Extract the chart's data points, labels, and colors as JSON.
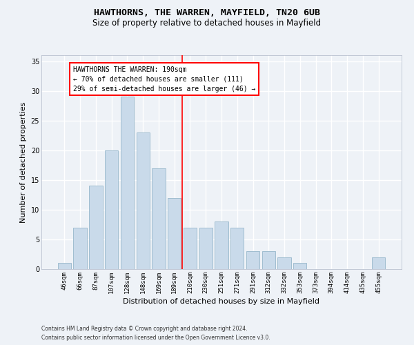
{
  "title": "HAWTHORNS, THE WARREN, MAYFIELD, TN20 6UB",
  "subtitle": "Size of property relative to detached houses in Mayfield",
  "xlabel": "Distribution of detached houses by size in Mayfield",
  "ylabel": "Number of detached properties",
  "categories": [
    "46sqm",
    "66sqm",
    "87sqm",
    "107sqm",
    "128sqm",
    "148sqm",
    "169sqm",
    "189sqm",
    "210sqm",
    "230sqm",
    "251sqm",
    "271sqm",
    "291sqm",
    "312sqm",
    "332sqm",
    "353sqm",
    "373sqm",
    "394sqm",
    "414sqm",
    "435sqm",
    "455sqm"
  ],
  "values": [
    1,
    7,
    14,
    20,
    29,
    23,
    17,
    12,
    7,
    7,
    8,
    7,
    3,
    3,
    2,
    1,
    0,
    0,
    0,
    0,
    2
  ],
  "bar_color": "#c9daea",
  "bar_edge_color": "#a0bdd0",
  "ylim": [
    0,
    36
  ],
  "yticks": [
    0,
    5,
    10,
    15,
    20,
    25,
    30,
    35
  ],
  "property_line_index": 7.5,
  "property_line_label": "HAWTHORNS THE WARREN: 190sqm",
  "annotation_line1": "← 70% of detached houses are smaller (111)",
  "annotation_line2": "29% of semi-detached houses are larger (46) →",
  "footer_line1": "Contains HM Land Registry data © Crown copyright and database right 2024.",
  "footer_line2": "Contains public sector information licensed under the Open Government Licence v3.0.",
  "background_color": "#eef2f7",
  "grid_color": "#ffffff",
  "title_fontsize": 9.5,
  "subtitle_fontsize": 8.5,
  "tick_fontsize": 6.5,
  "ylabel_fontsize": 8,
  "xlabel_fontsize": 8,
  "annotation_fontsize": 7,
  "footer_fontsize": 5.5
}
